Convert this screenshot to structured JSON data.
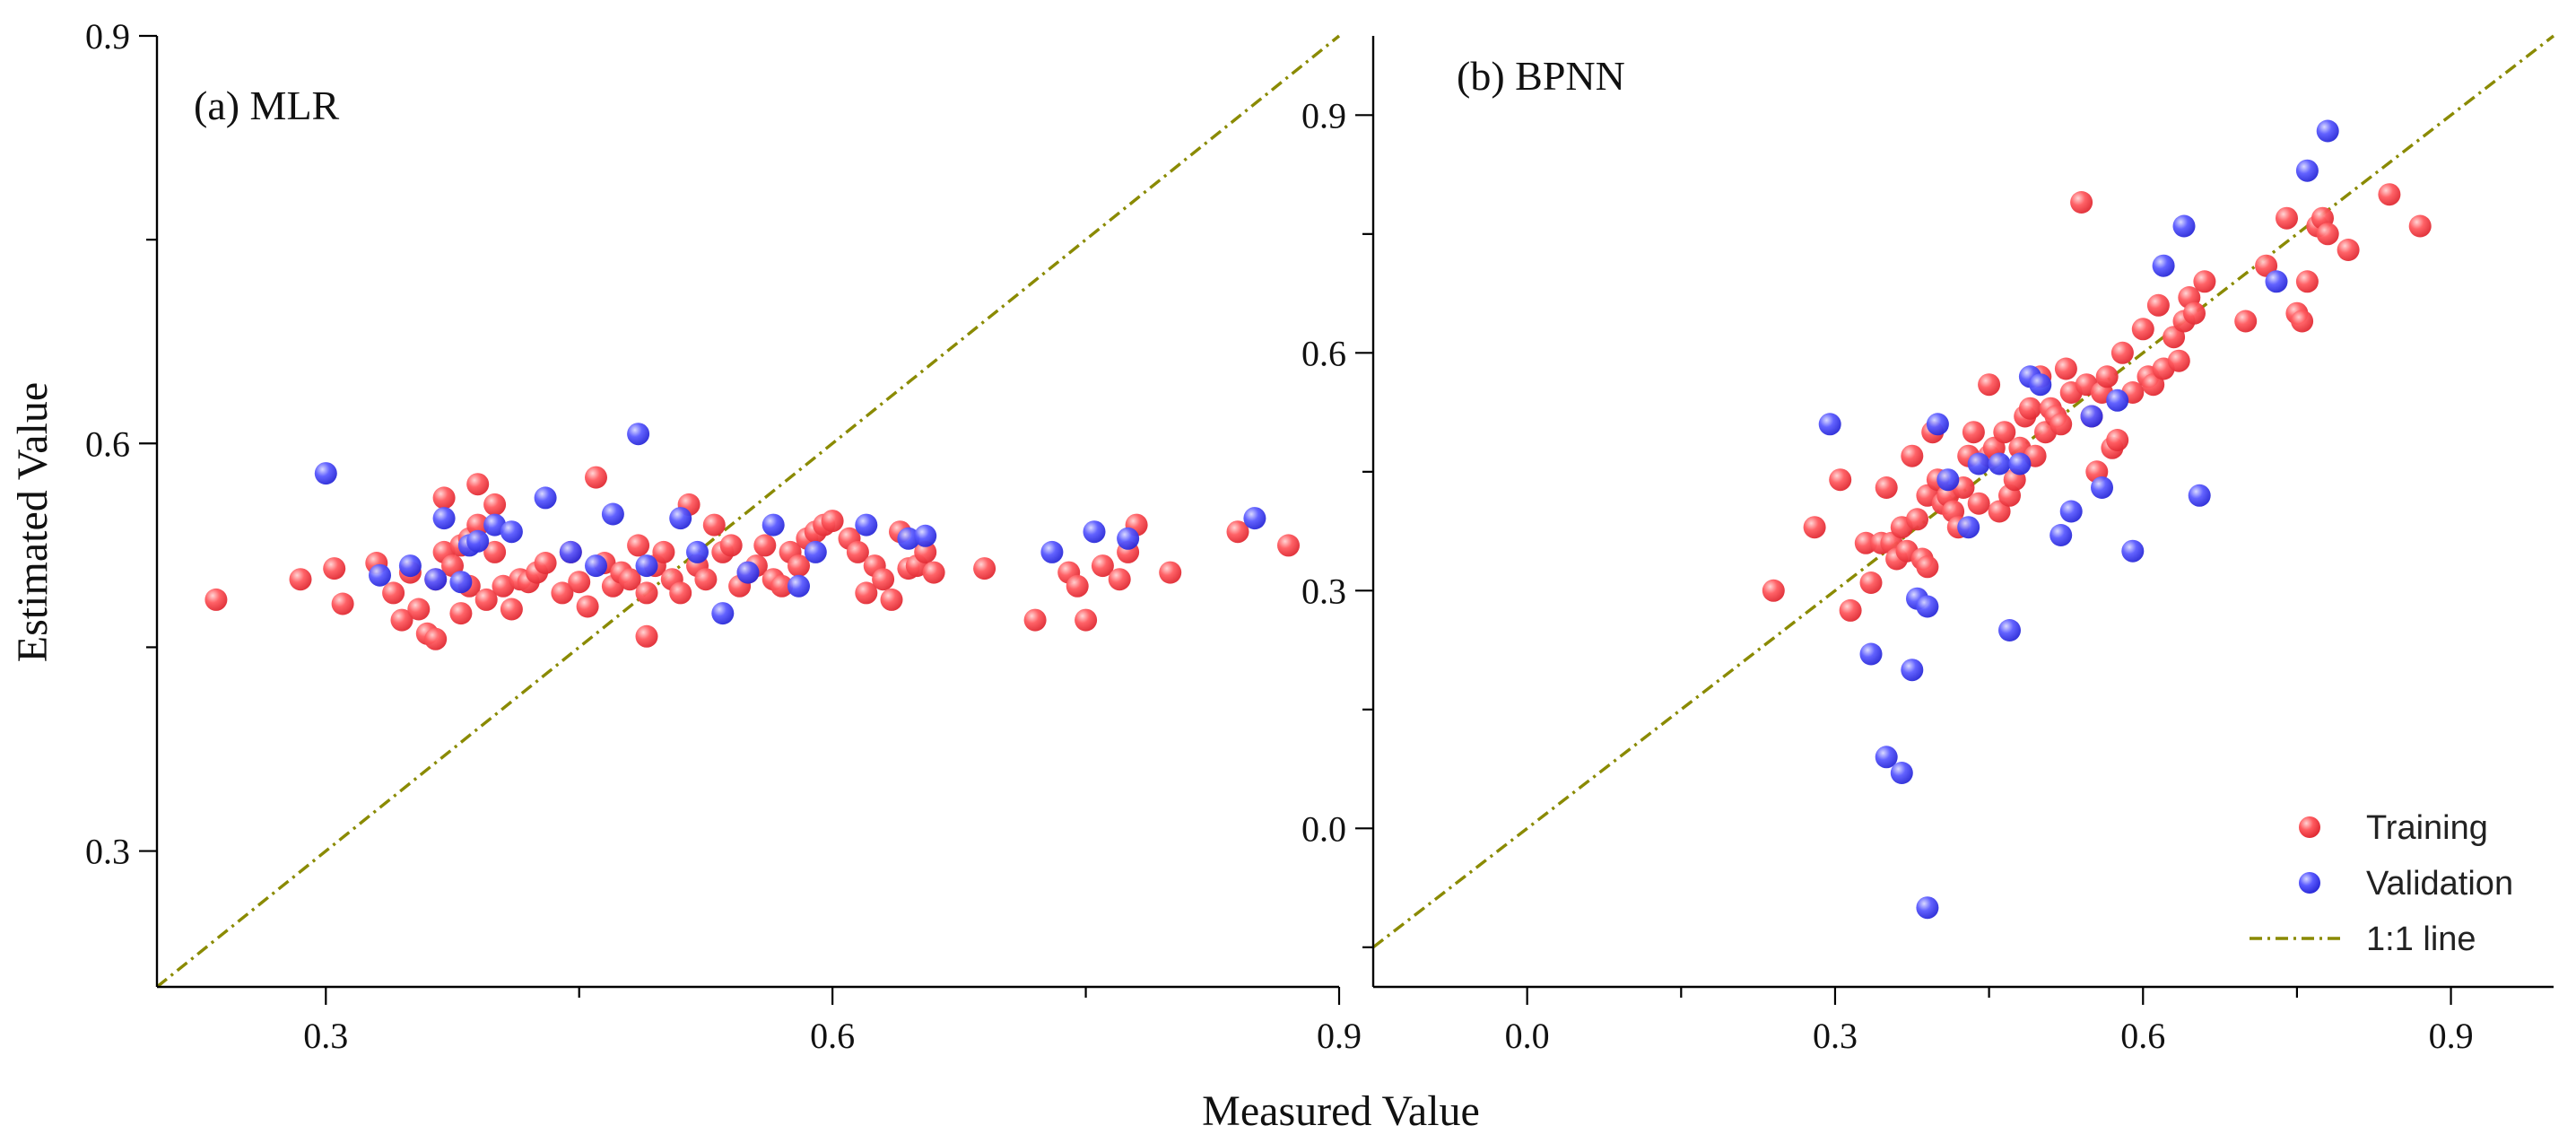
{
  "figure": {
    "xlabel": "Measured Value",
    "ylabel": "Estimated Value",
    "legend": {
      "training": "Training",
      "validation": "Validation",
      "line": "1:1 line",
      "position": "bottom-right"
    }
  },
  "colors": {
    "training": "#ff4f55",
    "validation": "#4d4dff",
    "line": "#8a8a00"
  },
  "chart_data": [
    {
      "panel": "a",
      "type": "scatter",
      "title": "(a) MLR",
      "xlabel": "Measured Value",
      "ylabel": "Estimated Value",
      "xlim": [
        0.2,
        0.9
      ],
      "ylim": [
        0.2,
        0.9
      ],
      "xticks": [
        "0.3",
        "0.6",
        "0.9"
      ],
      "xtick_values": [
        0.3,
        0.6,
        0.9
      ],
      "yticks": [
        "0.3",
        "0.6",
        "0.9"
      ],
      "ytick_values": [
        0.3,
        0.6,
        0.9
      ],
      "series": [
        {
          "name": "Training",
          "x": [
            0.235,
            0.285,
            0.305,
            0.31,
            0.33,
            0.34,
            0.345,
            0.35,
            0.355,
            0.36,
            0.365,
            0.365,
            0.37,
            0.37,
            0.375,
            0.38,
            0.38,
            0.385,
            0.385,
            0.39,
            0.39,
            0.395,
            0.4,
            0.4,
            0.405,
            0.41,
            0.415,
            0.42,
            0.425,
            0.43,
            0.44,
            0.445,
            0.45,
            0.455,
            0.46,
            0.465,
            0.47,
            0.475,
            0.48,
            0.485,
            0.49,
            0.49,
            0.495,
            0.5,
            0.505,
            0.51,
            0.515,
            0.52,
            0.525,
            0.53,
            0.535,
            0.54,
            0.545,
            0.55,
            0.555,
            0.56,
            0.565,
            0.57,
            0.575,
            0.58,
            0.585,
            0.59,
            0.595,
            0.6,
            0.61,
            0.615,
            0.62,
            0.625,
            0.63,
            0.635,
            0.64,
            0.645,
            0.65,
            0.655,
            0.66,
            0.69,
            0.72,
            0.74,
            0.745,
            0.75,
            0.76,
            0.77,
            0.775,
            0.78,
            0.8,
            0.84,
            0.87
          ],
          "y": [
            0.485,
            0.5,
            0.508,
            0.482,
            0.512,
            0.49,
            0.47,
            0.505,
            0.478,
            0.46,
            0.456,
            0.5,
            0.52,
            0.56,
            0.51,
            0.475,
            0.525,
            0.53,
            0.495,
            0.57,
            0.54,
            0.485,
            0.555,
            0.52,
            0.495,
            0.478,
            0.5,
            0.498,
            0.505,
            0.512,
            0.49,
            0.52,
            0.498,
            0.48,
            0.575,
            0.512,
            0.495,
            0.505,
            0.5,
            0.525,
            0.49,
            0.458,
            0.51,
            0.52,
            0.5,
            0.49,
            0.555,
            0.51,
            0.5,
            0.54,
            0.52,
            0.525,
            0.495,
            0.505,
            0.51,
            0.525,
            0.5,
            0.495,
            0.52,
            0.51,
            0.53,
            0.535,
            0.54,
            0.543,
            0.53,
            0.52,
            0.49,
            0.51,
            0.5,
            0.485,
            0.535,
            0.508,
            0.51,
            0.52,
            0.505,
            0.508,
            0.47,
            0.505,
            0.495,
            0.47,
            0.51,
            0.5,
            0.52,
            0.54,
            0.505,
            0.535,
            0.525
          ]
        },
        {
          "name": "Validation",
          "x": [
            0.3,
            0.332,
            0.35,
            0.365,
            0.37,
            0.38,
            0.385,
            0.39,
            0.4,
            0.41,
            0.43,
            0.445,
            0.46,
            0.47,
            0.485,
            0.49,
            0.51,
            0.52,
            0.535,
            0.55,
            0.565,
            0.58,
            0.59,
            0.62,
            0.645,
            0.655,
            0.73,
            0.755,
            0.775,
            0.85
          ],
          "y": [
            0.578,
            0.503,
            0.51,
            0.5,
            0.545,
            0.498,
            0.525,
            0.528,
            0.54,
            0.535,
            0.56,
            0.52,
            0.51,
            0.548,
            0.607,
            0.51,
            0.545,
            0.52,
            0.475,
            0.505,
            0.54,
            0.495,
            0.52,
            0.54,
            0.53,
            0.532,
            0.52,
            0.535,
            0.53,
            0.545
          ]
        }
      ],
      "reference_line": {
        "name": "1:1 line",
        "x": [
          0.2,
          0.9
        ],
        "y": [
          0.2,
          0.9
        ]
      }
    },
    {
      "panel": "b",
      "type": "scatter",
      "title": "(b) BPNN",
      "xlabel": "Measured Value",
      "ylabel": "",
      "xlim": [
        -0.15,
        1.0
      ],
      "ylim": [
        -0.2,
        1.0
      ],
      "xticks": [
        "0.0",
        "0.3",
        "0.6",
        "0.9"
      ],
      "xtick_values": [
        0.0,
        0.3,
        0.6,
        0.9
      ],
      "yticks": [
        "0.0",
        "0.3",
        "0.6",
        "0.9"
      ],
      "ytick_values": [
        0.0,
        0.3,
        0.6,
        0.9
      ],
      "series": [
        {
          "name": "Training",
          "x": [
            0.24,
            0.28,
            0.305,
            0.315,
            0.33,
            0.335,
            0.345,
            0.35,
            0.355,
            0.36,
            0.365,
            0.37,
            0.375,
            0.38,
            0.385,
            0.39,
            0.39,
            0.395,
            0.4,
            0.405,
            0.41,
            0.415,
            0.42,
            0.425,
            0.43,
            0.435,
            0.44,
            0.45,
            0.45,
            0.455,
            0.46,
            0.465,
            0.47,
            0.475,
            0.48,
            0.485,
            0.49,
            0.495,
            0.5,
            0.505,
            0.51,
            0.515,
            0.52,
            0.525,
            0.53,
            0.54,
            0.545,
            0.55,
            0.555,
            0.56,
            0.565,
            0.57,
            0.575,
            0.58,
            0.59,
            0.6,
            0.605,
            0.61,
            0.615,
            0.62,
            0.63,
            0.635,
            0.64,
            0.645,
            0.65,
            0.66,
            0.7,
            0.72,
            0.74,
            0.75,
            0.755,
            0.76,
            0.77,
            0.775,
            0.78,
            0.8,
            0.84,
            0.87
          ],
          "y": [
            0.3,
            0.38,
            0.44,
            0.275,
            0.36,
            0.31,
            0.36,
            0.43,
            0.36,
            0.34,
            0.38,
            0.35,
            0.47,
            0.39,
            0.34,
            0.33,
            0.42,
            0.5,
            0.44,
            0.41,
            0.42,
            0.4,
            0.38,
            0.43,
            0.47,
            0.5,
            0.41,
            0.56,
            0.47,
            0.48,
            0.4,
            0.5,
            0.42,
            0.44,
            0.48,
            0.52,
            0.53,
            0.47,
            0.57,
            0.5,
            0.53,
            0.52,
            0.51,
            0.58,
            0.55,
            0.79,
            0.56,
            0.52,
            0.45,
            0.55,
            0.57,
            0.48,
            0.49,
            0.6,
            0.55,
            0.63,
            0.57,
            0.56,
            0.66,
            0.58,
            0.62,
            0.59,
            0.64,
            0.67,
            0.65,
            0.69,
            0.64,
            0.71,
            0.77,
            0.65,
            0.64,
            0.69,
            0.76,
            0.77,
            0.75,
            0.73,
            0.8,
            0.76
          ]
        },
        {
          "name": "Validation",
          "x": [
            0.295,
            0.335,
            0.35,
            0.365,
            0.375,
            0.38,
            0.39,
            0.39,
            0.4,
            0.41,
            0.43,
            0.44,
            0.46,
            0.47,
            0.48,
            0.49,
            0.5,
            0.52,
            0.53,
            0.55,
            0.56,
            0.575,
            0.59,
            0.62,
            0.64,
            0.655,
            0.73,
            0.76,
            0.78
          ],
          "y": [
            0.51,
            0.22,
            0.09,
            0.07,
            0.2,
            0.29,
            0.28,
            -0.1,
            0.51,
            0.44,
            0.38,
            0.46,
            0.46,
            0.25,
            0.46,
            0.57,
            0.56,
            0.37,
            0.4,
            0.52,
            0.43,
            0.54,
            0.35,
            0.71,
            0.76,
            0.42,
            0.69,
            0.83,
            0.88
          ]
        }
      ],
      "reference_line": {
        "name": "1:1 line",
        "x": [
          -0.15,
          1.0
        ],
        "y": [
          -0.15,
          1.0
        ]
      }
    }
  ]
}
